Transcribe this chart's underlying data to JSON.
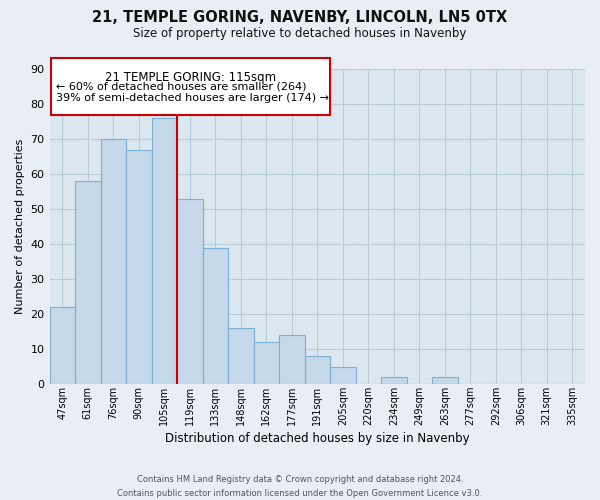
{
  "title": "21, TEMPLE GORING, NAVENBY, LINCOLN, LN5 0TX",
  "subtitle": "Size of property relative to detached houses in Navenby",
  "xlabel": "Distribution of detached houses by size in Navenby",
  "ylabel": "Number of detached properties",
  "bar_labels": [
    "47sqm",
    "61sqm",
    "76sqm",
    "90sqm",
    "105sqm",
    "119sqm",
    "133sqm",
    "148sqm",
    "162sqm",
    "177sqm",
    "191sqm",
    "205sqm",
    "220sqm",
    "234sqm",
    "249sqm",
    "263sqm",
    "277sqm",
    "292sqm",
    "306sqm",
    "321sqm",
    "335sqm"
  ],
  "bar_values": [
    22,
    58,
    70,
    67,
    76,
    53,
    39,
    16,
    12,
    14,
    8,
    5,
    0,
    2,
    0,
    2,
    0,
    0,
    0,
    0,
    0
  ],
  "bar_color": "#c5d9ea",
  "bar_edge_color": "#7bafd4",
  "marker_color": "#cc0000",
  "ylim": [
    0,
    90
  ],
  "yticks": [
    0,
    10,
    20,
    30,
    40,
    50,
    60,
    70,
    80,
    90
  ],
  "annotation_title": "21 TEMPLE GORING: 115sqm",
  "annotation_line1": "← 60% of detached houses are smaller (264)",
  "annotation_line2": "39% of semi-detached houses are larger (174) →",
  "footer_line1": "Contains HM Land Registry data © Crown copyright and database right 2024.",
  "footer_line2": "Contains public sector information licensed under the Open Government Licence v3.0.",
  "bg_color": "#e8eef4",
  "plot_bg_color": "#dce8f0",
  "grid_color": "#b8cdd8"
}
